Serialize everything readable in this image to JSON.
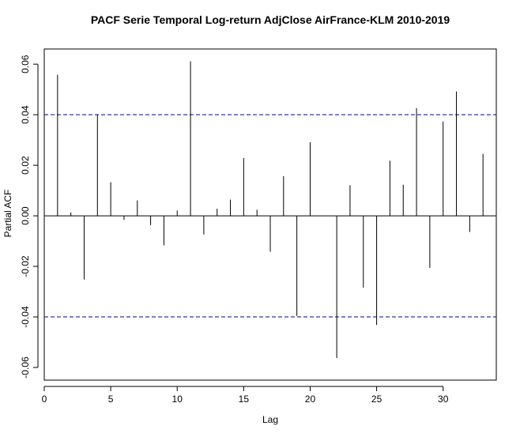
{
  "chart_data": {
    "type": "bar",
    "title": "PACF Serie Temporal Log-return AdjClose AirFrance-KLM 2010-2019",
    "xlabel": "Lag",
    "ylabel": "Partial ACF",
    "xlim": [
      0,
      34
    ],
    "ylim": [
      -0.065,
      0.066
    ],
    "x_ticks": [
      0,
      5,
      10,
      15,
      20,
      25,
      30
    ],
    "y_ticks": [
      -0.06,
      -0.04,
      -0.02,
      0.0,
      0.02,
      0.04,
      0.06
    ],
    "y_tick_labels": [
      "-0.06",
      "-0.04",
      "-0.02",
      "0.00",
      "0.02",
      "0.04",
      "0.06"
    ],
    "lags": [
      1,
      2,
      3,
      4,
      5,
      6,
      7,
      8,
      9,
      10,
      11,
      12,
      13,
      14,
      15,
      16,
      17,
      18,
      19,
      20,
      21,
      22,
      23,
      24,
      25,
      26,
      27,
      28,
      29,
      30,
      31,
      32,
      33
    ],
    "values": [
      0.0558,
      0.0013,
      -0.0252,
      0.0401,
      0.0133,
      -0.0016,
      0.0061,
      -0.0037,
      -0.0117,
      0.0021,
      0.0611,
      -0.0074,
      0.0028,
      0.0064,
      0.0229,
      0.0024,
      -0.0142,
      0.0157,
      -0.0396,
      0.0291,
      0.0,
      -0.0563,
      0.0121,
      -0.0284,
      -0.0432,
      0.0218,
      0.0123,
      0.0426,
      -0.0206,
      0.0373,
      0.0492,
      -0.0064,
      0.0245
    ],
    "confidence_bound": 0.04,
    "grid": false,
    "colors": {
      "bars": "#000000",
      "zero_line": "#000000",
      "confidence_line": "#00008b",
      "frame": "#000000"
    }
  }
}
